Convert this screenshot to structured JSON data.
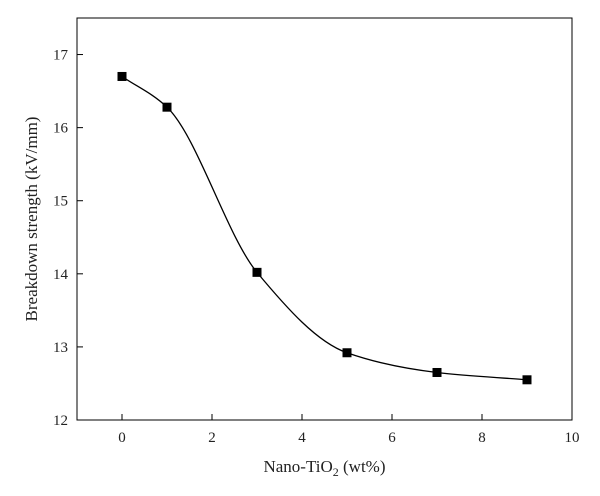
{
  "chart_data": {
    "type": "line",
    "title": "",
    "xlabel": "Nano-TiO",
    "xlabel_sub": "2",
    "xlabel_suffix": " (wt%)",
    "ylabel": "Breakdown strength (kV/mm)",
    "xlim": [
      -1,
      10
    ],
    "ylim": [
      12,
      17.5
    ],
    "x_ticks": [
      0,
      2,
      4,
      6,
      8,
      10
    ],
    "y_ticks": [
      12,
      13,
      14,
      15,
      16,
      17
    ],
    "grid": false,
    "legend": "none",
    "marker": "square",
    "line_style": "smooth",
    "color": "#000000",
    "series": [
      {
        "x": [
          0,
          1,
          3,
          5,
          7,
          9
        ],
        "y": [
          16.7,
          16.28,
          14.02,
          12.92,
          12.65,
          12.55
        ]
      }
    ]
  }
}
